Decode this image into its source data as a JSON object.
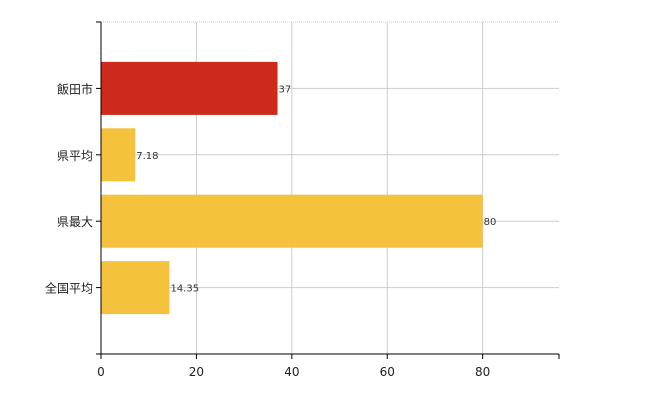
{
  "chart_data": {
    "type": "bar",
    "orientation": "horizontal",
    "categories": [
      "飯田市",
      "県平均",
      "県最大",
      "全国平均"
    ],
    "values": [
      37,
      7.18,
      80,
      14.35
    ],
    "value_labels": [
      "37",
      "7.18",
      "80",
      "14.35"
    ],
    "bar_colors": [
      "#cc2a1a",
      "#f5c23e",
      "#f5c23e",
      "#f5c23e"
    ],
    "xlim": [
      0,
      96
    ],
    "xticks": [
      0,
      20,
      40,
      60,
      80
    ],
    "xtick_labels": [
      "0",
      "20",
      "40",
      "60",
      "80"
    ],
    "grid": true,
    "grid_color": "#cccccc",
    "title": "",
    "xlabel": "",
    "ylabel": ""
  }
}
